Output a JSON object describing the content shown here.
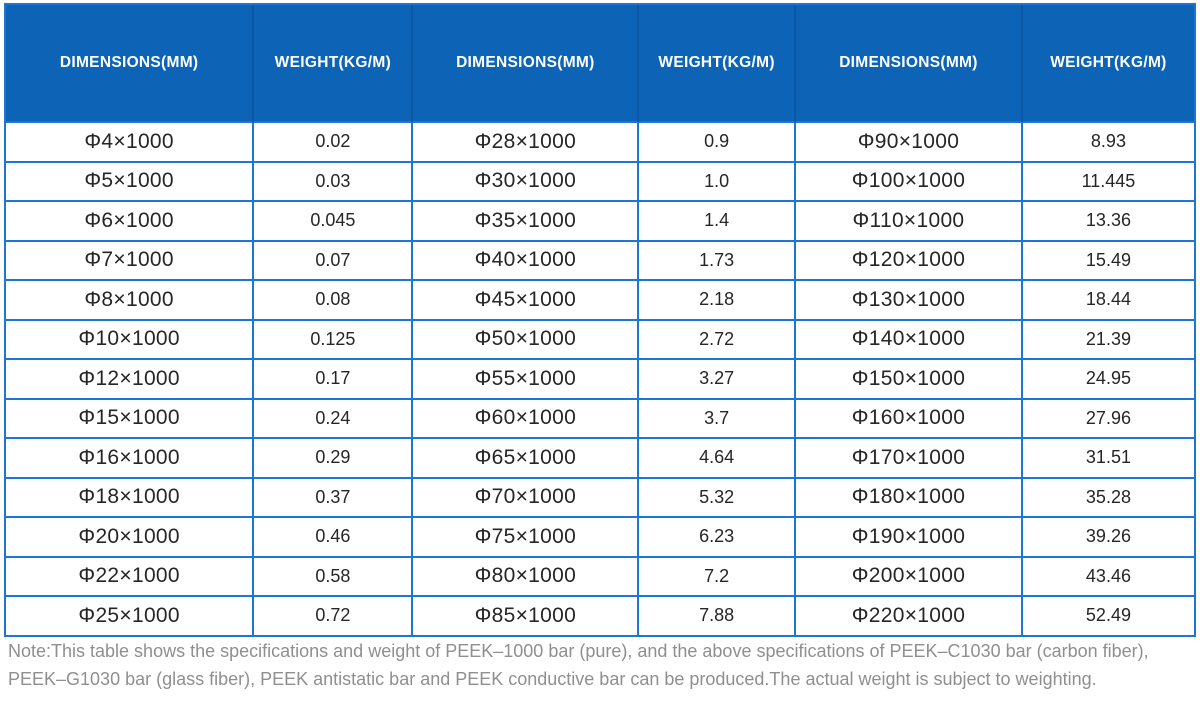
{
  "table": {
    "headers": [
      "DIMENSIONS(MM)",
      "WEIGHT(KG/M)",
      "DIMENSIONS(MM)",
      "WEIGHT(KG/M)",
      "DIMENSIONS(MM)",
      "WEIGHT(KG/M)"
    ],
    "rows": [
      [
        "Φ4×1000",
        "0.02",
        "Φ28×1000",
        "0.9",
        "Φ90×1000",
        "8.93"
      ],
      [
        "Φ5×1000",
        "0.03",
        "Φ30×1000",
        "1.0",
        "Φ100×1000",
        "11.445"
      ],
      [
        "Φ6×1000",
        "0.045",
        "Φ35×1000",
        "1.4",
        "Φ110×1000",
        "13.36"
      ],
      [
        "Φ7×1000",
        "0.07",
        "Φ40×1000",
        "1.73",
        "Φ120×1000",
        "15.49"
      ],
      [
        "Φ8×1000",
        "0.08",
        "Φ45×1000",
        "2.18",
        "Φ130×1000",
        "18.44"
      ],
      [
        "Φ10×1000",
        "0.125",
        "Φ50×1000",
        "2.72",
        "Φ140×1000",
        "21.39"
      ],
      [
        "Φ12×1000",
        "0.17",
        "Φ55×1000",
        "3.27",
        "Φ150×1000",
        "24.95"
      ],
      [
        "Φ15×1000",
        "0.24",
        "Φ60×1000",
        "3.7",
        "Φ160×1000",
        "27.96"
      ],
      [
        "Φ16×1000",
        "0.29",
        "Φ65×1000",
        "4.64",
        "Φ170×1000",
        "31.51"
      ],
      [
        "Φ18×1000",
        "0.37",
        "Φ70×1000",
        "5.32",
        "Φ180×1000",
        "35.28"
      ],
      [
        "Φ20×1000",
        "0.46",
        "Φ75×1000",
        "6.23",
        "Φ190×1000",
        "39.26"
      ],
      [
        "Φ22×1000",
        "0.58",
        "Φ80×1000",
        "7.2",
        "Φ200×1000",
        "43.46"
      ],
      [
        "Φ25×1000",
        "0.72",
        "Φ85×1000",
        "7.88",
        "Φ220×1000",
        "52.49"
      ]
    ]
  },
  "note": {
    "text": "Note:This table shows the specifications and weight of PEEK–1000 bar (pure), and the above specifications of PEEK–C1030 bar (carbon fiber), PEEK–G1030 bar (glass fiber), PEEK antistatic bar and PEEK conductive bar can be produced.The actual weight is subject to weighting."
  },
  "colors": {
    "header_bg": "#0d63b5",
    "header_divider": "#0b58a6",
    "grid_border": "#1b76d6",
    "body_text": "#262626",
    "note_text": "#8f8f8f"
  }
}
